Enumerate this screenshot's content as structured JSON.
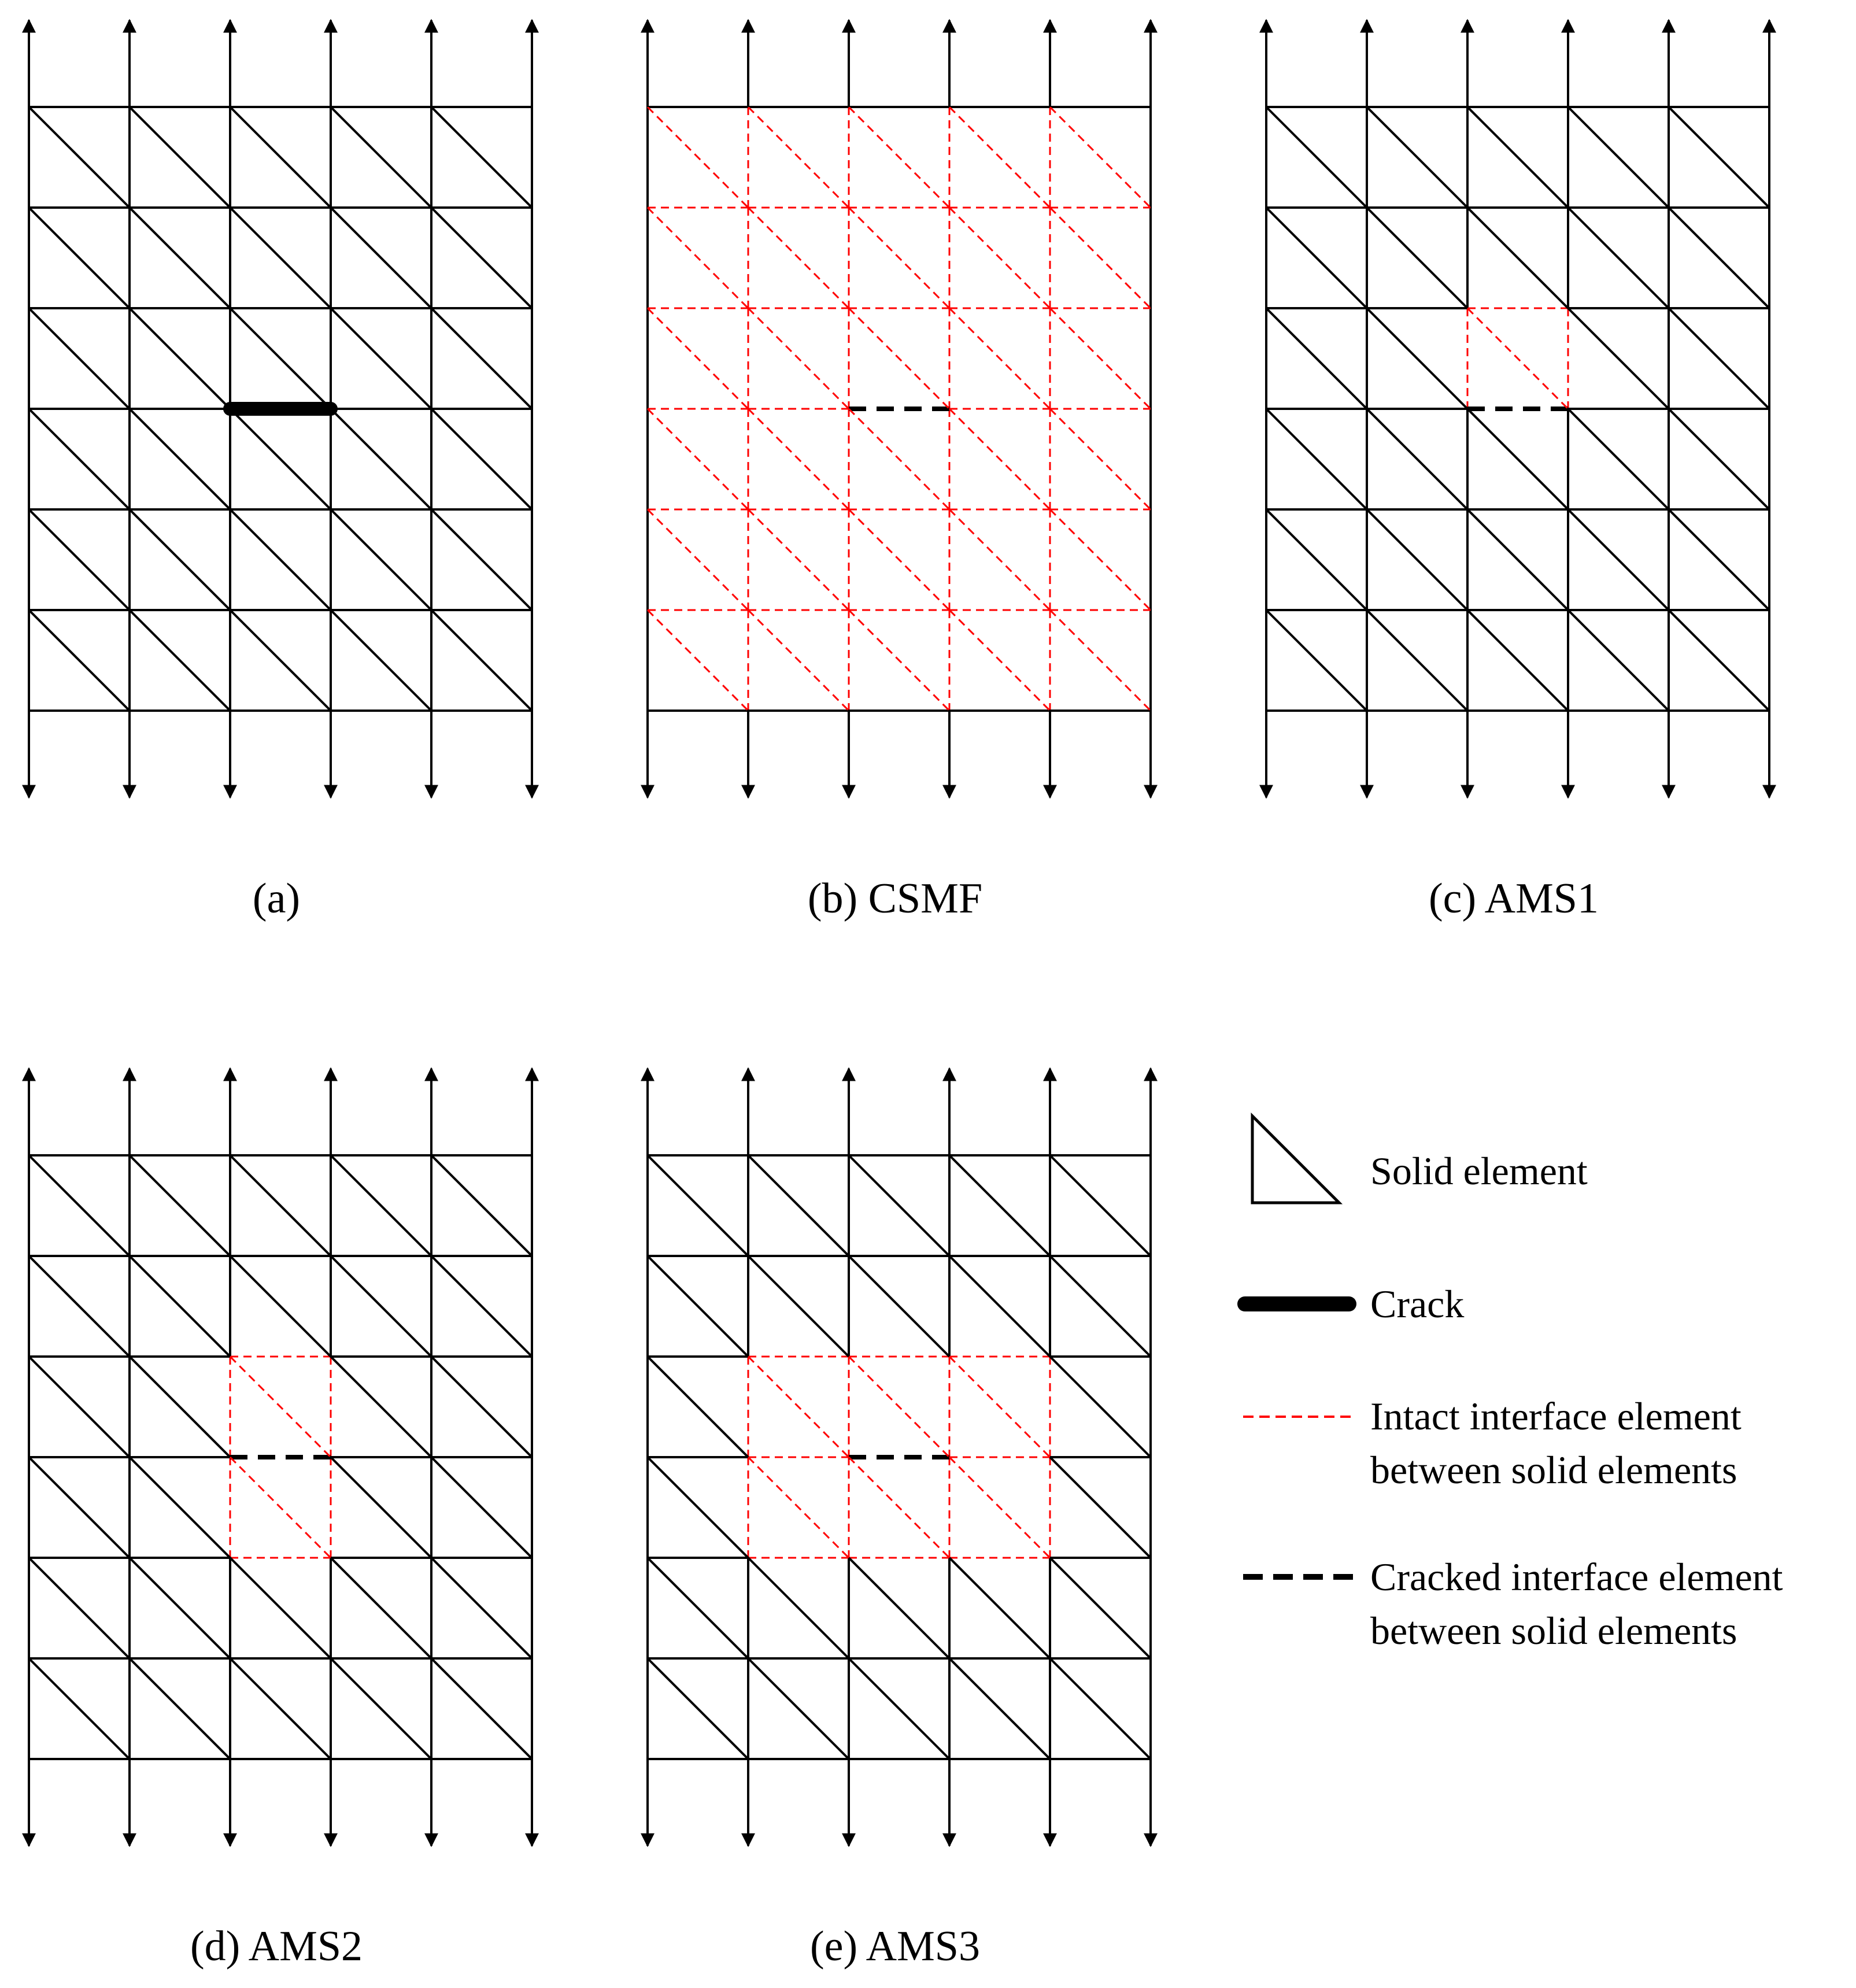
{
  "panels": [
    {
      "id": "a",
      "caption": "(a)",
      "crack": "solid",
      "interface": "none"
    },
    {
      "id": "b",
      "caption": "(b) CSMF",
      "crack": "dashed",
      "interface": "all"
    },
    {
      "id": "c",
      "caption": "(c) AMS1",
      "crack": "dashed",
      "interface": "ams1"
    },
    {
      "id": "d",
      "caption": "(d) AMS2",
      "crack": "dashed",
      "interface": "ams2"
    },
    {
      "id": "e",
      "caption": "(e) AMS3",
      "crack": "dashed",
      "interface": "ams3"
    }
  ],
  "legend": {
    "solid_element": "Solid element",
    "crack": "Crack",
    "intact_line1": "Intact interface element",
    "intact_line2": "between solid elements",
    "cracked_line1": "Cracked interface element",
    "cracked_line2": "between solid elements"
  },
  "colors": {
    "mesh": "#000000",
    "intact_interface": "#ff0000",
    "cracked_interface": "#000000"
  }
}
